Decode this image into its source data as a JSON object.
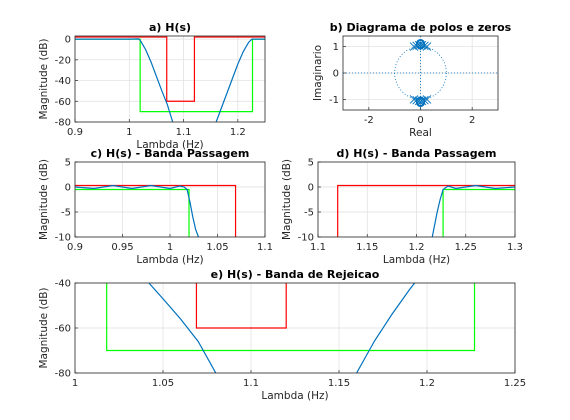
{
  "chart_data": [
    {
      "id": "a",
      "type": "line",
      "title": "a) H(s)",
      "xlabel": "Lambda (Hz)",
      "ylabel": "Magnitude (dB)",
      "xlim": [
        0.9,
        1.25
      ],
      "ylim": [
        -80,
        3
      ],
      "xticks": [
        "0.9",
        "1",
        "1.1",
        "1.2"
      ],
      "yticks": [
        "0",
        "-20",
        "-40",
        "-60",
        "-80"
      ],
      "grid": true,
      "series": [
        {
          "color": "#00ff00",
          "x": [
            0.9,
            1.02,
            1.02,
            1.227,
            1.227,
            1.25
          ],
          "y": [
            0,
            0,
            -70,
            -70,
            0,
            0
          ]
        },
        {
          "color": "#ff0000",
          "x": [
            0.9,
            1.069,
            1.069,
            1.12,
            1.12,
            1.25
          ],
          "y": [
            2,
            2,
            -60,
            -60,
            2,
            2
          ]
        },
        {
          "color": "#0072bd",
          "x": [
            0.9,
            1.0,
            1.017,
            1.02,
            1.03,
            1.04,
            1.05,
            1.06,
            1.07,
            1.08
          ],
          "y": [
            0,
            0,
            0.2,
            -1,
            -10,
            -22,
            -36,
            -50,
            -63,
            -80
          ]
        },
        {
          "color": "#0072bd",
          "x": [
            1.16,
            1.17,
            1.18,
            1.19,
            1.2,
            1.21,
            1.22,
            1.226,
            1.25
          ],
          "y": [
            -80,
            -66,
            -52,
            -38,
            -24,
            -12,
            -3,
            0,
            0
          ]
        }
      ]
    },
    {
      "id": "b",
      "type": "scatter",
      "title": "b) Diagrama de polos e zeros",
      "xlabel": "Real",
      "ylabel": "Imaginario",
      "xlim": [
        -3,
        3
      ],
      "ylim": [
        -1.4,
        1.4
      ],
      "xticks": [
        "-2",
        "0",
        "2"
      ],
      "yticks": [
        "1",
        "0",
        "-1"
      ],
      "grid": true,
      "zeros": [
        [
          0,
          1.12
        ],
        [
          0,
          1.07
        ],
        [
          0,
          1.09
        ],
        [
          0,
          -1.12
        ],
        [
          0,
          -1.07
        ],
        [
          0,
          -1.09
        ]
      ],
      "poles": [
        [
          -0.25,
          1.0
        ],
        [
          0.25,
          1.0
        ],
        [
          -0.15,
          1.03
        ],
        [
          0.15,
          1.03
        ],
        [
          -0.05,
          1.05
        ],
        [
          0.05,
          1.05
        ],
        [
          -0.25,
          -1.0
        ],
        [
          0.25,
          -1.0
        ],
        [
          -0.15,
          -1.03
        ],
        [
          0.15,
          -1.03
        ],
        [
          -0.05,
          -1.05
        ],
        [
          0.05,
          -1.05
        ]
      ],
      "unit_circle": true
    },
    {
      "id": "c",
      "type": "line",
      "title": "c) H(s) - Banda Passagem",
      "xlabel": "Lambda (Hz)",
      "ylabel": "Magnitude (dB)",
      "xlim": [
        0.9,
        1.1
      ],
      "ylim": [
        -10,
        5
      ],
      "xticks": [
        "0.9",
        "0.95",
        "1",
        "1.05",
        "1.1"
      ],
      "yticks": [
        "5",
        "0",
        "-5",
        "-10"
      ],
      "grid": true,
      "series": [
        {
          "color": "#00ff00",
          "x": [
            0.9,
            1.02,
            1.02
          ],
          "y": [
            -0.5,
            -0.5,
            -10
          ]
        },
        {
          "color": "#ff0000",
          "x": [
            0.9,
            1.069,
            1.069
          ],
          "y": [
            0.3,
            0.3,
            -10
          ]
        },
        {
          "color": "#0072bd",
          "x": [
            0.9,
            0.92,
            0.94,
            0.96,
            0.98,
            1.0,
            1.01,
            1.015,
            1.018,
            1.021,
            1.024,
            1.027,
            1.03
          ],
          "y": [
            0,
            -0.3,
            0.3,
            -0.3,
            0.3,
            -0.3,
            0.2,
            0,
            -0.5,
            -3,
            -6,
            -8.5,
            -10
          ]
        }
      ]
    },
    {
      "id": "d",
      "type": "line",
      "title": "d) H(s) - Banda Passagem",
      "xlabel": "Lambda (Hz)",
      "ylabel": "Magnitude (dB)",
      "xlim": [
        1.1,
        1.3
      ],
      "ylim": [
        -10,
        5
      ],
      "xticks": [
        "1.1",
        "1.15",
        "1.2",
        "1.25",
        "1.3"
      ],
      "yticks": [
        "5",
        "0",
        "-5",
        "-10"
      ],
      "grid": true,
      "series": [
        {
          "color": "#00ff00",
          "x": [
            1.227,
            1.227,
            1.3
          ],
          "y": [
            -10,
            -0.5,
            -0.5
          ]
        },
        {
          "color": "#ff0000",
          "x": [
            1.12,
            1.12,
            1.3
          ],
          "y": [
            -10,
            0.3,
            0.3
          ]
        },
        {
          "color": "#0072bd",
          "x": [
            1.216,
            1.218,
            1.221,
            1.224,
            1.227,
            1.232,
            1.24,
            1.26,
            1.28,
            1.3
          ],
          "y": [
            -10,
            -8,
            -5,
            -2.5,
            -0.5,
            0.2,
            -0.3,
            0.3,
            -0.3,
            0
          ]
        }
      ]
    },
    {
      "id": "e",
      "type": "line",
      "title": "e) H(s) - Banda de Rejeicao",
      "xlabel": "Lambda (Hz)",
      "ylabel": "Magnitude (dB)",
      "xlim": [
        1.0,
        1.25
      ],
      "ylim": [
        -80,
        -40
      ],
      "xticks": [
        "1",
        "1.05",
        "1.1",
        "1.15",
        "1.2",
        "1.25"
      ],
      "yticks": [
        "-40",
        "-60",
        "-80"
      ],
      "grid": true,
      "series": [
        {
          "color": "#00ff00",
          "x": [
            1.018,
            1.018,
            1.227,
            1.227
          ],
          "y": [
            -40,
            -70,
            -70,
            -40
          ]
        },
        {
          "color": "#ff0000",
          "x": [
            1.069,
            1.069,
            1.12,
            1.12
          ],
          "y": [
            -40,
            -60,
            -60,
            -40
          ]
        },
        {
          "color": "#0072bd",
          "x": [
            1.042,
            1.05,
            1.06,
            1.07,
            1.08
          ],
          "y": [
            -40,
            -47,
            -56,
            -66,
            -80
          ]
        },
        {
          "color": "#0072bd",
          "x": [
            1.16,
            1.17,
            1.18,
            1.19,
            1.193
          ],
          "y": [
            -80,
            -66,
            -54,
            -43,
            -40
          ]
        }
      ]
    }
  ]
}
